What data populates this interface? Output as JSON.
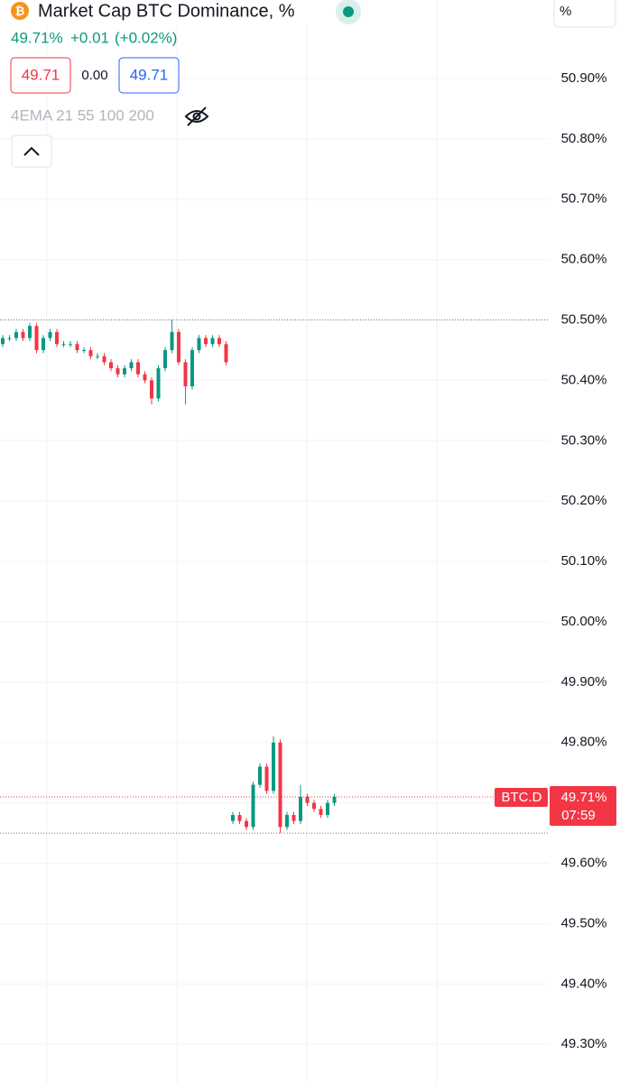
{
  "header": {
    "title": "Market Cap BTC Dominance, %",
    "last": "49.71%",
    "change": "+0.01",
    "change_percent": "(+0.02%)",
    "bid": "49.71",
    "spread": "0.00",
    "ask": "49.71",
    "indicator": "4EMA 21 55 100 200",
    "scale_mode": "%"
  },
  "chart_data": {
    "type": "candlestick",
    "symbol": "BTC.D",
    "countdown": "07:59",
    "up_color": "#089981",
    "down_color": "#f23645",
    "open": [
      50.46,
      50.47,
      50.47,
      50.48,
      50.47,
      50.49,
      50.45,
      50.47,
      50.48,
      50.46,
      50.46,
      50.46,
      50.45,
      50.45,
      50.44,
      50.44,
      50.43,
      50.42,
      50.41,
      50.42,
      50.43,
      50.41,
      50.4,
      50.37,
      50.42,
      50.45,
      50.48,
      50.43,
      50.39,
      50.45,
      50.47,
      50.46,
      50.47,
      50.46,
      49.67,
      49.68,
      49.67,
      49.66,
      49.73,
      49.76,
      49.72,
      49.8,
      49.66,
      49.68,
      49.67,
      49.71,
      49.7,
      49.69,
      49.68,
      49.7
    ],
    "high": [
      50.475,
      50.475,
      50.485,
      50.485,
      50.495,
      50.495,
      50.475,
      50.485,
      50.485,
      50.465,
      50.465,
      50.465,
      50.455,
      50.455,
      50.445,
      50.445,
      50.435,
      50.425,
      50.425,
      50.435,
      50.435,
      50.415,
      50.405,
      50.425,
      50.455,
      50.5,
      50.485,
      50.435,
      50.455,
      50.475,
      50.475,
      50.475,
      50.475,
      50.465,
      49.685,
      49.685,
      49.675,
      49.735,
      49.765,
      49.765,
      49.81,
      49.805,
      49.685,
      49.685,
      49.73,
      49.715,
      49.705,
      49.695,
      49.705,
      49.715
    ],
    "low": [
      50.455,
      50.465,
      50.465,
      50.465,
      50.465,
      50.445,
      50.445,
      50.465,
      50.455,
      50.455,
      50.455,
      50.445,
      50.445,
      50.435,
      50.435,
      50.425,
      50.415,
      50.405,
      50.405,
      50.415,
      50.405,
      50.395,
      50.36,
      50.365,
      50.415,
      50.445,
      50.425,
      50.36,
      50.385,
      50.445,
      50.455,
      50.455,
      50.455,
      50.425,
      49.665,
      49.665,
      49.655,
      49.655,
      49.725,
      49.715,
      49.715,
      49.65,
      49.655,
      49.665,
      49.665,
      49.695,
      49.685,
      49.675,
      49.675,
      49.695
    ],
    "close": [
      50.47,
      50.47,
      50.48,
      50.47,
      50.49,
      50.45,
      50.47,
      50.48,
      50.46,
      50.46,
      50.46,
      50.45,
      50.45,
      50.44,
      50.44,
      50.43,
      50.42,
      50.41,
      50.42,
      50.43,
      50.41,
      50.4,
      50.37,
      50.42,
      50.45,
      50.48,
      50.43,
      50.39,
      50.45,
      50.47,
      50.46,
      50.47,
      50.46,
      50.43,
      49.68,
      49.67,
      49.66,
      49.73,
      49.76,
      49.72,
      49.8,
      49.66,
      49.68,
      49.67,
      49.71,
      49.7,
      49.69,
      49.68,
      49.7,
      49.71
    ],
    "last_price": {
      "value": 49.71,
      "label": "49.71%"
    },
    "high_low_lines": [
      50.5,
      49.65
    ],
    "ylim": [
      49.236,
      51.03
    ],
    "yticks": [
      {
        "value": 50.9,
        "label": "50.90%"
      },
      {
        "value": 50.8,
        "label": "50.80%"
      },
      {
        "value": 50.7,
        "label": "50.70%"
      },
      {
        "value": 50.6,
        "label": "50.60%"
      },
      {
        "value": 50.5,
        "label": "50.50%"
      },
      {
        "value": 50.4,
        "label": "50.40%"
      },
      {
        "value": 50.3,
        "label": "50.30%"
      },
      {
        "value": 50.2,
        "label": "50.20%"
      },
      {
        "value": 50.1,
        "label": "50.10%"
      },
      {
        "value": 50.0,
        "label": "50.00%"
      },
      {
        "value": 49.9,
        "label": "49.90%"
      },
      {
        "value": 49.8,
        "label": "49.80%"
      },
      {
        "value": 49.7,
        "label": "49.70%"
      },
      {
        "value": 49.6,
        "label": "49.60%"
      },
      {
        "value": 49.5,
        "label": "49.50%"
      },
      {
        "value": 49.4,
        "label": "49.40%"
      },
      {
        "value": 49.3,
        "label": "49.30%"
      }
    ],
    "grid": true
  }
}
